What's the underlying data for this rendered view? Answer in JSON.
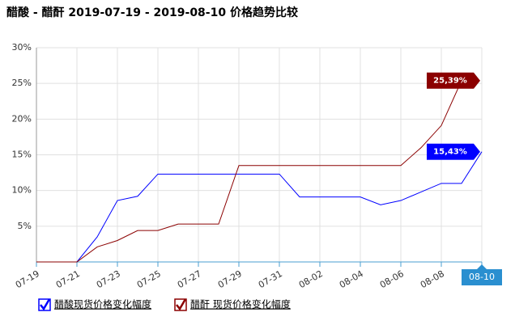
{
  "chart_data": {
    "type": "line",
    "title": "醋酸 - 醋酐 2019-07-19 - 2019-08-10 价格趋势比较",
    "categories": [
      "07-19",
      null,
      "07-21",
      null,
      "07-23",
      null,
      "07-25",
      null,
      "07-27",
      null,
      "07-29",
      null,
      "07-31",
      null,
      "08-02",
      null,
      "08-04",
      null,
      "08-06",
      null,
      "08-08",
      null,
      "08-10"
    ],
    "series": [
      {
        "name": "醋酸现货价格变化幅度",
        "color": "#0000ff",
        "values": [
          0,
          0,
          0,
          3.5,
          8.6,
          9.2,
          12.3,
          12.3,
          12.3,
          12.3,
          12.3,
          12.3,
          12.3,
          9.1,
          9.1,
          9.1,
          9.1,
          8.0,
          8.6,
          9.8,
          11.0,
          11.0,
          15.43
        ],
        "value_labels": [
          null,
          null,
          null,
          null,
          null,
          null,
          null,
          null,
          null,
          null,
          null,
          null,
          null,
          null,
          null,
          null,
          null,
          null,
          null,
          null,
          null,
          null,
          "15,43%"
        ]
      },
      {
        "name": "醋酐 现货价格变化幅度",
        "color": "#8b0000",
        "values": [
          0,
          0,
          0,
          2.1,
          3.0,
          4.4,
          4.4,
          5.3,
          5.3,
          5.3,
          13.5,
          13.5,
          13.5,
          13.5,
          13.5,
          13.5,
          13.5,
          13.5,
          13.5,
          16.0,
          19.1,
          25.39,
          null
        ],
        "value_labels": [
          null,
          null,
          null,
          null,
          null,
          null,
          null,
          null,
          null,
          null,
          null,
          null,
          null,
          null,
          null,
          null,
          null,
          null,
          null,
          null,
          null,
          "25,39%",
          null
        ]
      }
    ],
    "ylim": [
      0,
      30
    ],
    "yticks": [
      {
        "value": 5,
        "label": "5%"
      },
      {
        "value": 10,
        "label": "10%"
      },
      {
        "value": 15,
        "label": "15%"
      },
      {
        "value": 20,
        "label": "20%"
      },
      {
        "value": 25,
        "label": "25%"
      },
      {
        "value": 30,
        "label": "30%"
      }
    ],
    "grid": true
  }
}
